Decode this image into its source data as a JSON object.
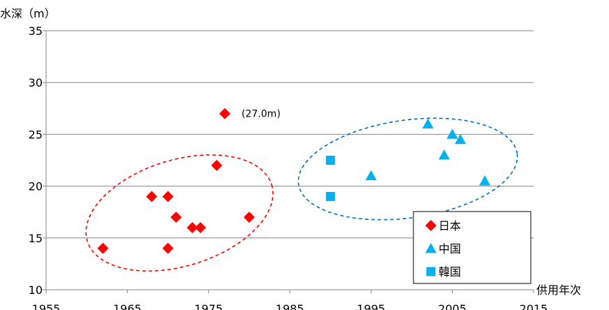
{
  "chart_data": {
    "type": "scatter",
    "ylabel": "水深（m）",
    "xlabel": "供用年次",
    "xlim": [
      1955,
      2015
    ],
    "ylim": [
      10,
      35
    ],
    "x_ticks": [
      1955,
      1965,
      1975,
      1985,
      1995,
      2005,
      2015
    ],
    "y_ticks": [
      10,
      15,
      20,
      25,
      30,
      35
    ],
    "grid": "horizontal",
    "legend_position": "bottom-right",
    "series": [
      {
        "name": "日本",
        "marker": "diamond",
        "color": "#ff0000",
        "x": [
          1962,
          1968,
          1970,
          1970,
          1971,
          1973,
          1974,
          1976,
          1977,
          1980
        ],
        "y": [
          14,
          19,
          19,
          14,
          17,
          16,
          16,
          22,
          27,
          17
        ]
      },
      {
        "name": "中国",
        "marker": "triangle",
        "color": "#00b0f0",
        "x": [
          1995,
          2002,
          2004,
          2005,
          2006,
          2009
        ],
        "y": [
          21,
          26,
          23,
          25,
          24.5,
          20.5
        ]
      },
      {
        "name": "韓国",
        "marker": "square",
        "color": "#00b0f0",
        "x": [
          1990,
          1990
        ],
        "y": [
          22.5,
          19
        ]
      }
    ],
    "annotations": [
      {
        "text": "(27.0m)",
        "x": 1977,
        "y": 27
      }
    ],
    "groupings": [
      {
        "series": "日本",
        "color": "#ff0000",
        "style": "dashed-ellipse"
      },
      {
        "series": "中国+韓国",
        "color": "#0070c0",
        "style": "dashed-ellipse"
      }
    ]
  }
}
